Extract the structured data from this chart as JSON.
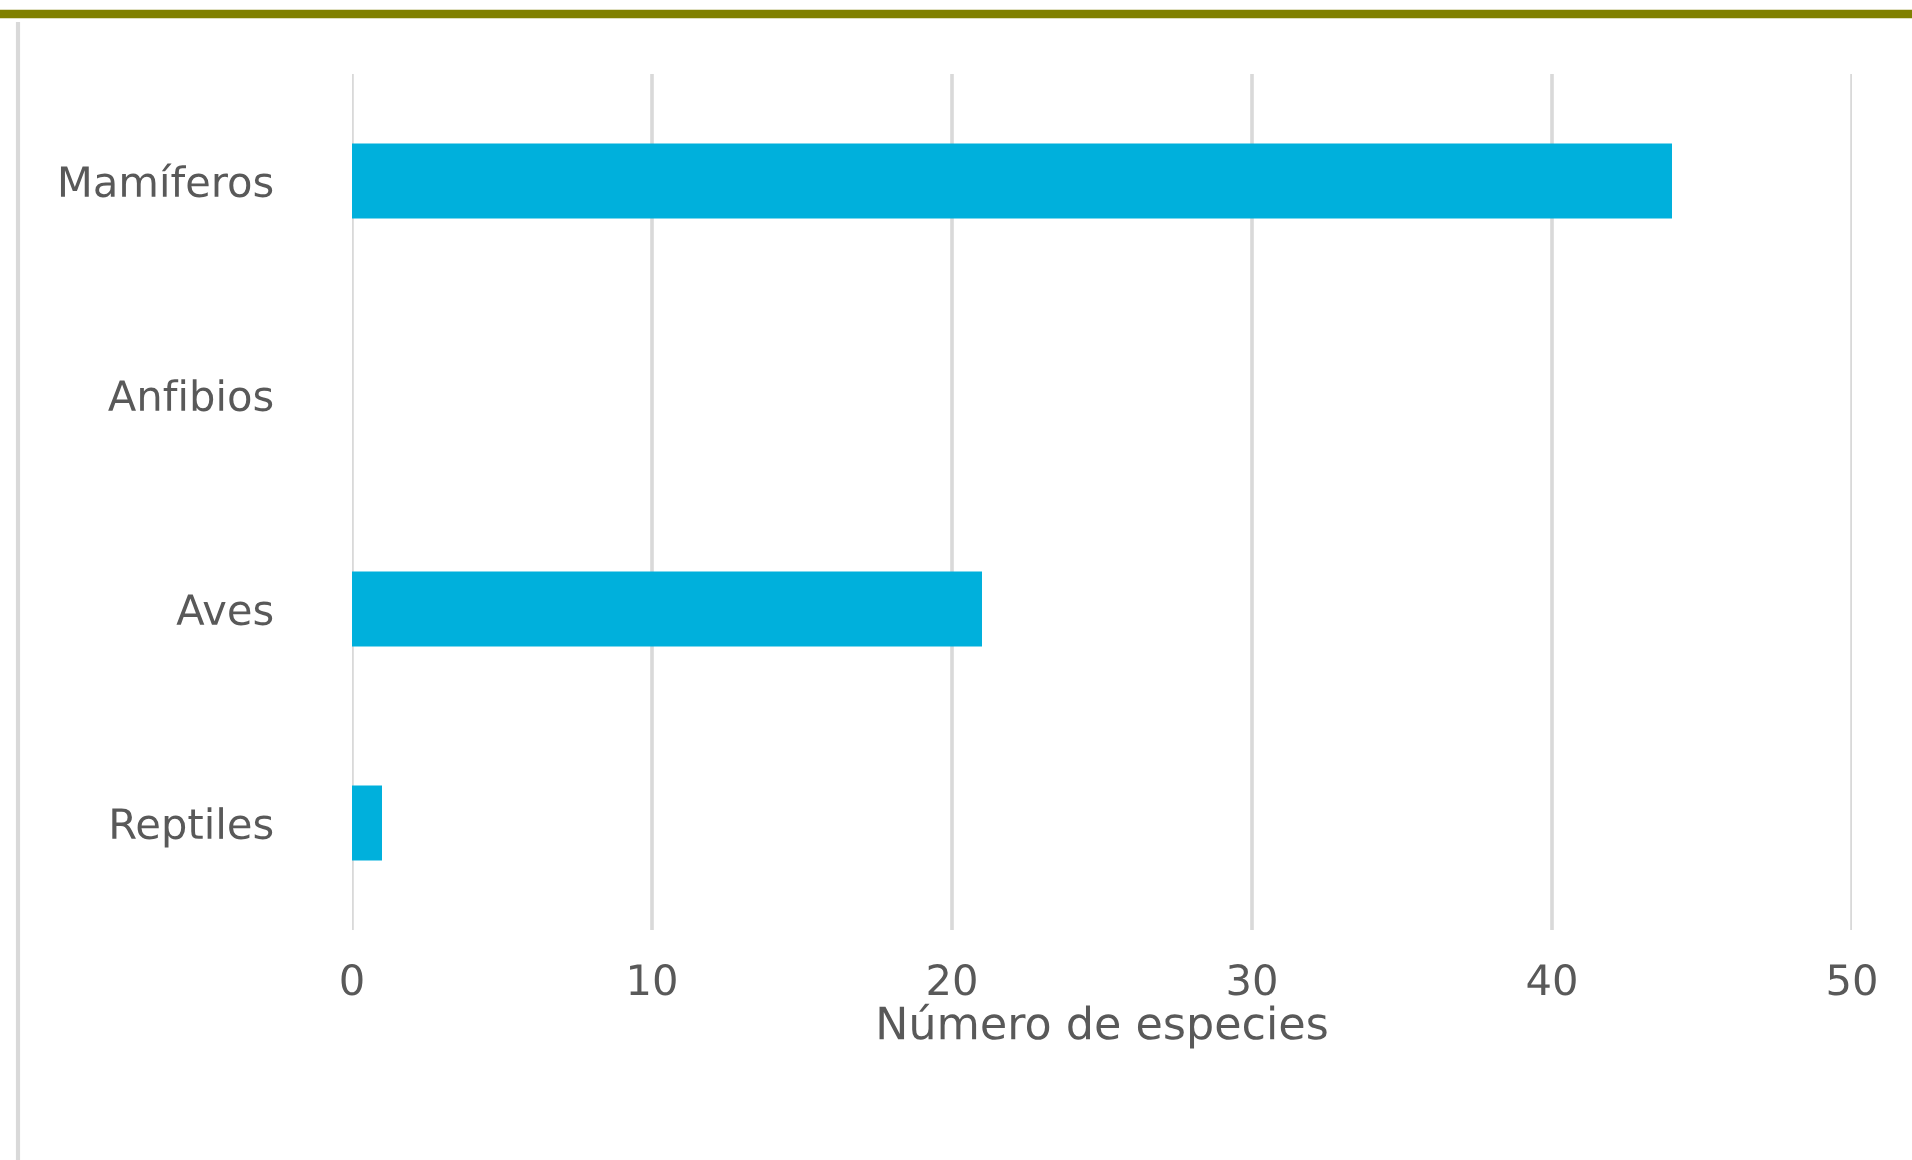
{
  "chart_data": {
    "type": "bar",
    "orientation": "horizontal",
    "xlabel": "Número de especies",
    "categories": [
      "Mamíferos",
      "Anfibios",
      "Aves",
      "Reptiles"
    ],
    "values": [
      44,
      0,
      21,
      1
    ],
    "color": "#00b0dc",
    "xlim": [
      0,
      50
    ],
    "xticks": [
      0,
      10,
      20,
      30,
      40,
      50
    ],
    "grid": "x"
  }
}
